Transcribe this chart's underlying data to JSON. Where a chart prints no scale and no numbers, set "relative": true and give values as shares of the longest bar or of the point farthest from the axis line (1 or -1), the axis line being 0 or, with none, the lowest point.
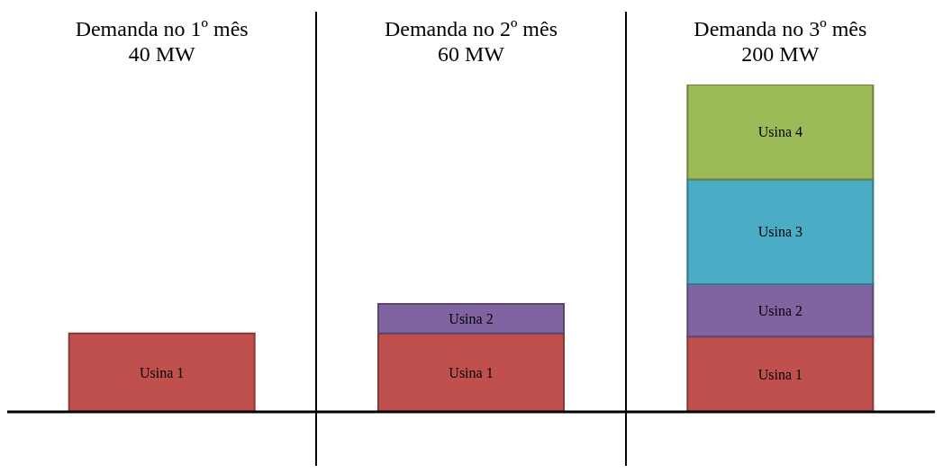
{
  "chart_data": {
    "type": "bar",
    "categories": [
      "Demanda no 1º mês\n40 MW",
      "Demanda no 2º mês\n60 MW",
      "Demanda no 3º mês\n200 MW"
    ],
    "stacked": true,
    "relative": true,
    "series": [
      {
        "name": "Usina 1",
        "color": "#c0504d",
        "values": [
          0.24,
          0.24,
          0.23
        ]
      },
      {
        "name": "Usina 2",
        "color": "#8064a2",
        "values": [
          null,
          0.09,
          0.16
        ]
      },
      {
        "name": "Usina 3",
        "color": "#4bacc6",
        "values": [
          null,
          null,
          0.32
        ]
      },
      {
        "name": "Usina 4",
        "color": "#9bbb59",
        "values": [
          null,
          null,
          0.29
        ]
      }
    ]
  }
}
